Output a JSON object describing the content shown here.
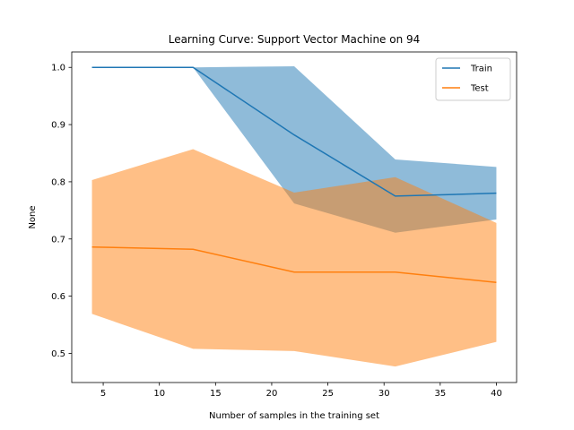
{
  "chart_data": {
    "type": "line",
    "title": "Learning Curve: Support Vector Machine on 94",
    "xlabel": "Number of samples in the training set",
    "ylabel": "None",
    "xlim": [
      2.2,
      41.8
    ],
    "ylim": [
      0.449,
      1.027
    ],
    "xticks": [
      5,
      10,
      15,
      20,
      25,
      30,
      35,
      40
    ],
    "yticks": [
      0.5,
      0.6,
      0.7,
      0.8,
      0.9,
      1.0
    ],
    "ytick_labels": [
      "0.5",
      "0.6",
      "0.7",
      "0.8",
      "0.9",
      "1.0"
    ],
    "grid": false,
    "legend_position": "top-right",
    "x": [
      4,
      13,
      22,
      31,
      40
    ],
    "series": [
      {
        "name": "Train",
        "color": "#1f77b4",
        "band_color": "#1f77b4",
        "band_opacity": 0.5,
        "values": [
          1.0,
          1.0,
          0.882,
          0.775,
          0.78
        ],
        "upper": [
          1.0,
          1.0,
          1.002,
          0.839,
          0.826
        ],
        "lower": [
          1.0,
          1.0,
          0.762,
          0.711,
          0.734
        ]
      },
      {
        "name": "Test",
        "color": "#ff7f0e",
        "band_color": "#ff7f0e",
        "band_opacity": 0.5,
        "values": [
          0.686,
          0.682,
          0.642,
          0.642,
          0.624
        ],
        "upper": [
          0.803,
          0.857,
          0.781,
          0.808,
          0.728
        ],
        "lower": [
          0.569,
          0.508,
          0.504,
          0.477,
          0.52
        ]
      }
    ]
  }
}
